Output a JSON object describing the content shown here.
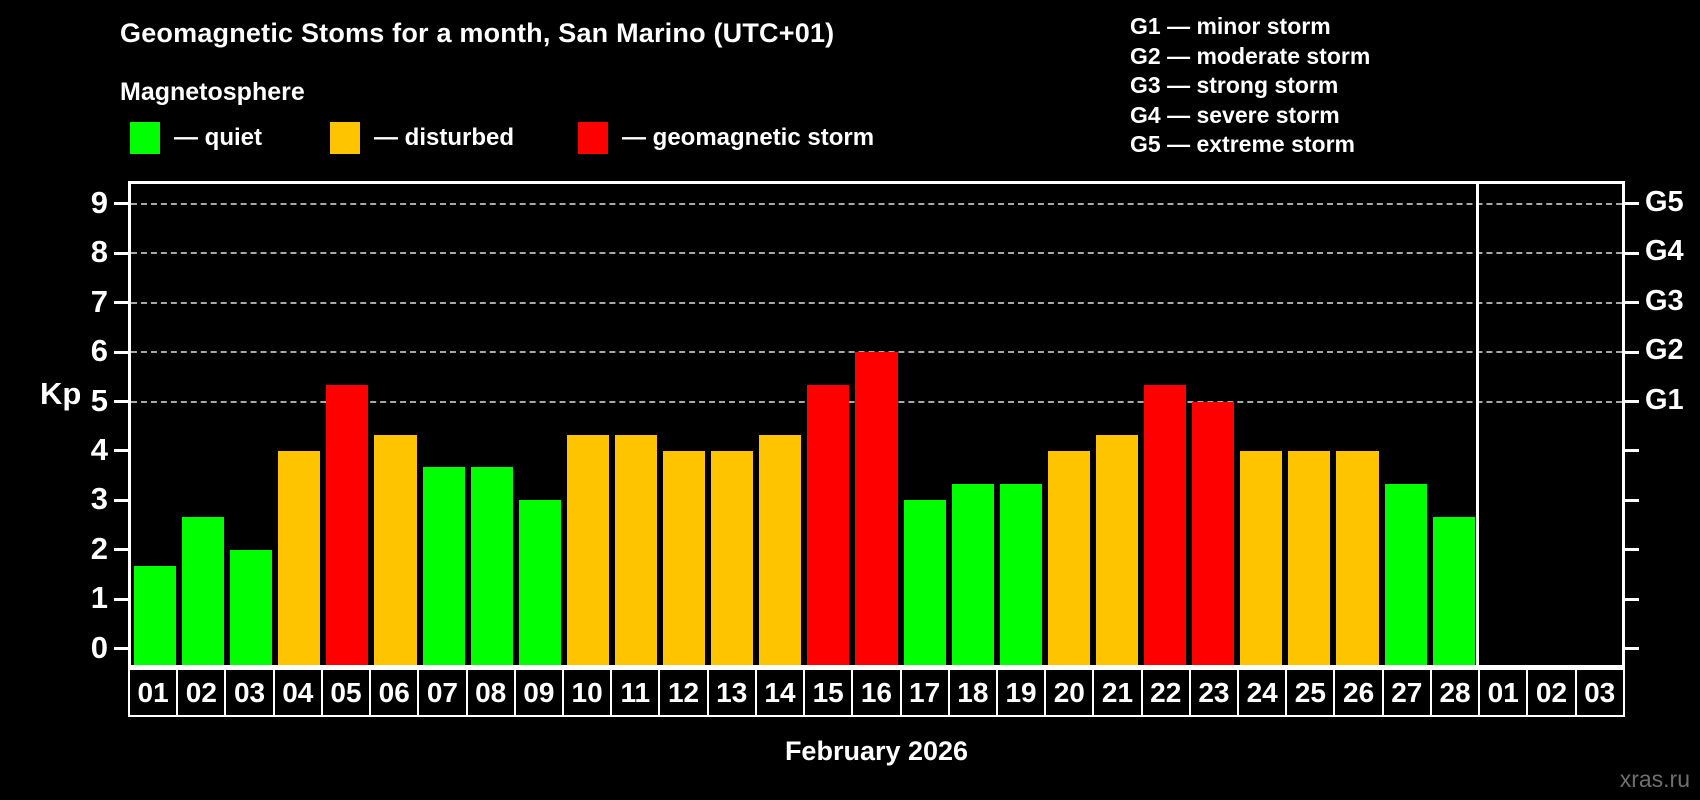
{
  "title": "Geomagnetic Stoms for a month, San Marino (UTC+01)",
  "legend": {
    "title": "Magnetosphere",
    "items": [
      {
        "key": "quiet",
        "label": "— quiet",
        "color": "#00ff00"
      },
      {
        "key": "disturbed",
        "label": "— disturbed",
        "color": "#ffc400"
      },
      {
        "key": "storm",
        "label": "— geomagnetic storm",
        "color": "#ff0000"
      }
    ]
  },
  "g_legend": [
    "G1 — minor storm",
    "G2 — moderate storm",
    "G3 — strong storm",
    "G4 — severe storm",
    "G5 — extreme storm"
  ],
  "watermark": "xras.ru",
  "chart_data": {
    "type": "bar",
    "title": "Geomagnetic Stoms for a month, San Marino (UTC+01)",
    "xlabel": "February 2026",
    "ylabel": "Kp",
    "ylim": [
      -0.33,
      9.4
    ],
    "yticks": [
      0,
      1,
      2,
      3,
      4,
      5,
      6,
      7,
      8,
      9
    ],
    "gridlines": [
      5,
      6,
      7,
      8,
      9
    ],
    "grid_style": "dashed",
    "right_axis": [
      {
        "label": "G5",
        "value": 9
      },
      {
        "label": "G4",
        "value": 8
      },
      {
        "label": "G3",
        "value": 7
      },
      {
        "label": "G2",
        "value": 6
      },
      {
        "label": "G1",
        "value": 5
      }
    ],
    "bar_colors": {
      "quiet": "#00ff00",
      "disturbed": "#ffc400",
      "storm": "#ff0000"
    },
    "categories": [
      "01",
      "02",
      "03",
      "04",
      "05",
      "06",
      "07",
      "08",
      "09",
      "10",
      "11",
      "12",
      "13",
      "14",
      "15",
      "16",
      "17",
      "18",
      "19",
      "20",
      "21",
      "22",
      "23",
      "24",
      "25",
      "26",
      "27",
      "28",
      "01",
      "02",
      "03"
    ],
    "separator_after_slot": 28,
    "bars": [
      {
        "day": "01",
        "value": 1.67,
        "status": "quiet"
      },
      {
        "day": "02",
        "value": 2.67,
        "status": "quiet"
      },
      {
        "day": "03",
        "value": 2.0,
        "status": "quiet"
      },
      {
        "day": "04",
        "value": 4.0,
        "status": "disturbed"
      },
      {
        "day": "05",
        "value": 5.33,
        "status": "storm"
      },
      {
        "day": "06",
        "value": 4.33,
        "status": "disturbed"
      },
      {
        "day": "07",
        "value": 3.67,
        "status": "quiet"
      },
      {
        "day": "08",
        "value": 3.67,
        "status": "quiet"
      },
      {
        "day": "09",
        "value": 3.0,
        "status": "quiet"
      },
      {
        "day": "10",
        "value": 4.33,
        "status": "disturbed"
      },
      {
        "day": "11",
        "value": 4.33,
        "status": "disturbed"
      },
      {
        "day": "12",
        "value": 4.0,
        "status": "disturbed"
      },
      {
        "day": "13",
        "value": 4.0,
        "status": "disturbed"
      },
      {
        "day": "14",
        "value": 4.33,
        "status": "disturbed"
      },
      {
        "day": "15",
        "value": 5.33,
        "status": "storm"
      },
      {
        "day": "16",
        "value": 6.0,
        "status": "storm"
      },
      {
        "day": "17",
        "value": 3.0,
        "status": "quiet"
      },
      {
        "day": "18",
        "value": 3.33,
        "status": "quiet"
      },
      {
        "day": "19",
        "value": 3.33,
        "status": "quiet"
      },
      {
        "day": "20",
        "value": 4.0,
        "status": "disturbed"
      },
      {
        "day": "21",
        "value": 4.33,
        "status": "disturbed"
      },
      {
        "day": "22",
        "value": 5.33,
        "status": "storm"
      },
      {
        "day": "23",
        "value": 5.0,
        "status": "storm"
      },
      {
        "day": "24",
        "value": 4.0,
        "status": "disturbed"
      },
      {
        "day": "25",
        "value": 4.0,
        "status": "disturbed"
      },
      {
        "day": "26",
        "value": 4.0,
        "status": "disturbed"
      },
      {
        "day": "27",
        "value": 3.33,
        "status": "quiet"
      },
      {
        "day": "28",
        "value": 2.67,
        "status": "quiet"
      },
      {
        "day": "01",
        "value": null,
        "status": null
      },
      {
        "day": "02",
        "value": null,
        "status": null
      },
      {
        "day": "03",
        "value": null,
        "status": null
      }
    ]
  }
}
